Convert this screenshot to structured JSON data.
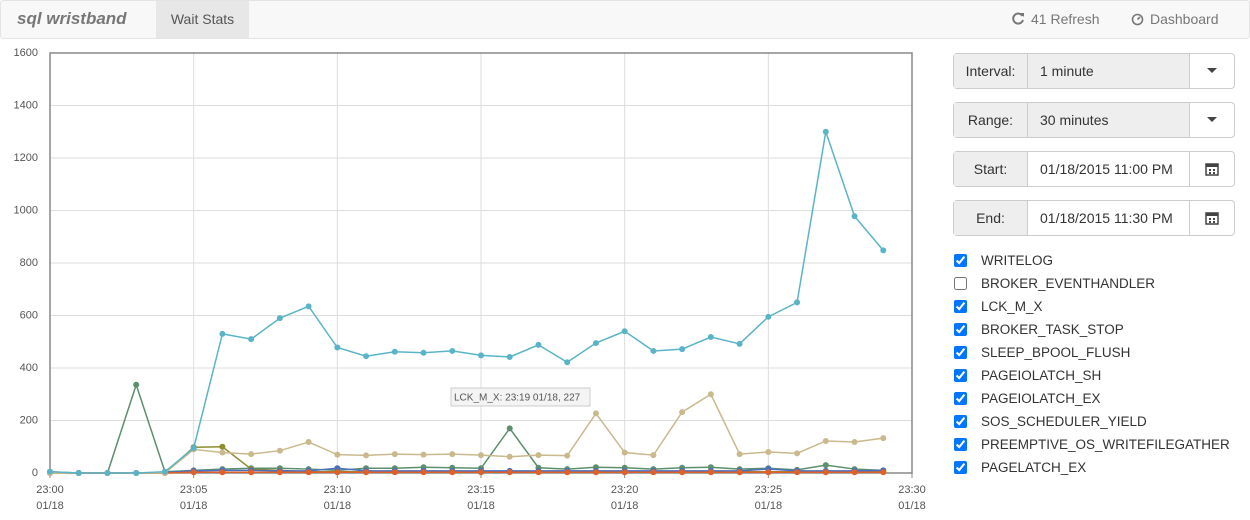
{
  "navbar": {
    "brand": "sql wristband",
    "tab": "Wait Stats",
    "refresh": "41 Refresh",
    "dashboard": "Dashboard"
  },
  "controls": [
    {
      "label": "Interval:",
      "value": "1 minute",
      "kind": "select"
    },
    {
      "label": "Range:",
      "value": "30 minutes",
      "kind": "select"
    },
    {
      "label": "Start:",
      "value": "01/18/2015 11:00 PM",
      "kind": "date"
    },
    {
      "label": "End:",
      "value": "01/18/2015 11:30 PM",
      "kind": "date"
    }
  ],
  "wait_types": [
    {
      "name": "WRITELOG",
      "checked": true
    },
    {
      "name": "BROKER_EVENTHANDLER",
      "checked": false
    },
    {
      "name": "LCK_M_X",
      "checked": true
    },
    {
      "name": "BROKER_TASK_STOP",
      "checked": true
    },
    {
      "name": "SLEEP_BPOOL_FLUSH",
      "checked": true
    },
    {
      "name": "PAGEIOLATCH_SH",
      "checked": true
    },
    {
      "name": "PAGEIOLATCH_EX",
      "checked": true
    },
    {
      "name": "SOS_SCHEDULER_YIELD",
      "checked": true
    },
    {
      "name": "PREEMPTIVE_OS_WRITEFILEGATHER",
      "checked": true
    },
    {
      "name": "PAGELATCH_EX",
      "checked": true
    }
  ],
  "chart_data": {
    "type": "line",
    "x": [
      "23:00",
      "23:01",
      "23:02",
      "23:03",
      "23:04",
      "23:05",
      "23:06",
      "23:07",
      "23:08",
      "23:09",
      "23:10",
      "23:11",
      "23:12",
      "23:13",
      "23:14",
      "23:15",
      "23:16",
      "23:17",
      "23:18",
      "23:19",
      "23:20",
      "23:21",
      "23:22",
      "23:23",
      "23:24",
      "23:25",
      "23:26",
      "23:27",
      "23:28",
      "23:29"
    ],
    "xlim": [
      "23:00",
      "23:30"
    ],
    "xticks": [
      {
        "value": "23:00",
        "label": "23:00",
        "date": "01/18"
      },
      {
        "value": "23:05",
        "label": "23:05",
        "date": "01/18"
      },
      {
        "value": "23:10",
        "label": "23:10",
        "date": "01/18"
      },
      {
        "value": "23:15",
        "label": "23:15",
        "date": "01/18"
      },
      {
        "value": "23:20",
        "label": "23:20",
        "date": "01/18"
      },
      {
        "value": "23:25",
        "label": "23:25",
        "date": "01/18"
      },
      {
        "value": "23:30",
        "label": "23:30",
        "date": "01/18"
      }
    ],
    "ylim": [
      0,
      1600
    ],
    "yticks": [
      0,
      200,
      400,
      600,
      800,
      1000,
      1200,
      1400,
      1600
    ],
    "grid": true,
    "series": [
      {
        "name": "BROKER_TASK_STOP",
        "color": "#5b8f6e",
        "values": [
          5,
          0,
          0,
          336,
          5,
          10,
          15,
          18,
          18,
          15,
          10,
          18,
          18,
          22,
          20,
          18,
          170,
          20,
          15,
          22,
          20,
          15,
          20,
          22,
          15,
          18,
          12,
          30,
          15,
          10
        ]
      },
      {
        "name": "SLEEP_BPOOL_FLUSH",
        "color": "#8c8c2e",
        "values": [
          0,
          0,
          0,
          0,
          0,
          98,
          100,
          15,
          10,
          5,
          5,
          5,
          5,
          5,
          5,
          5,
          5,
          5,
          5,
          5,
          5,
          5,
          5,
          5,
          5,
          5,
          5,
          5,
          5,
          5
        ]
      },
      {
        "name": "PAGEIOLATCH_SH",
        "color": "#4a6fc0",
        "values": [
          2,
          0,
          0,
          0,
          2,
          8,
          10,
          10,
          8,
          8,
          18,
          8,
          8,
          8,
          8,
          8,
          8,
          8,
          8,
          8,
          8,
          8,
          8,
          8,
          8,
          15,
          8,
          8,
          8,
          10
        ]
      },
      {
        "name": "PAGEIOLATCH_EX",
        "color": "#e0602a",
        "values": [
          2,
          0,
          0,
          0,
          0,
          3,
          3,
          3,
          3,
          3,
          3,
          3,
          3,
          3,
          3,
          3,
          3,
          3,
          3,
          3,
          3,
          3,
          3,
          3,
          3,
          3,
          3,
          3,
          3,
          3
        ]
      },
      {
        "name": "LCK_M_X",
        "color": "#c9b98c",
        "values": [
          0,
          0,
          0,
          0,
          0,
          90,
          78,
          72,
          85,
          118,
          70,
          67,
          72,
          70,
          72,
          68,
          62,
          68,
          66,
          227,
          78,
          68,
          232,
          300,
          72,
          80,
          75,
          122,
          118,
          133
        ]
      },
      {
        "name": "WRITELOG",
        "color": "#5ab4c8",
        "values": [
          5,
          0,
          0,
          0,
          5,
          95,
          530,
          510,
          590,
          635,
          478,
          445,
          462,
          458,
          465,
          448,
          442,
          488,
          422,
          495,
          540,
          465,
          472,
          518,
          492,
          595,
          650,
          1300,
          978,
          848
        ]
      }
    ],
    "tooltip": "LCK_M_X: 23:19 01/18, 227"
  }
}
